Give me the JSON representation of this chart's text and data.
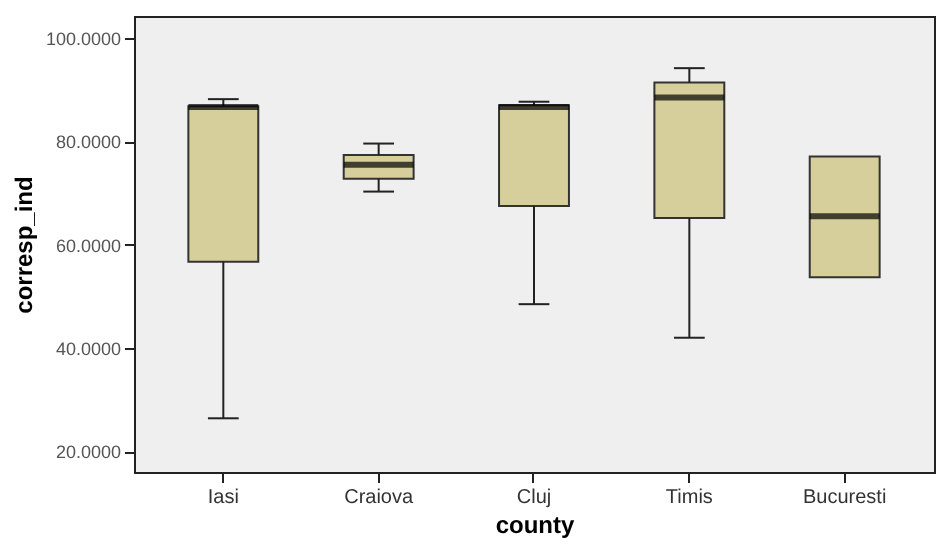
{
  "chart_data": {
    "type": "box",
    "xlabel": "county",
    "ylabel": "corresp_ind",
    "categories": [
      "Iasi",
      "Craiova",
      "Cluj",
      "Timis",
      "Bucuresti"
    ],
    "color": "#d6cf9c",
    "boxes": [
      {
        "low": 26.4,
        "q1": 56.7,
        "median": 86.7,
        "q3": 86.8,
        "high": 88.2
      },
      {
        "low": 70.3,
        "q1": 72.8,
        "median": 75.5,
        "q3": 77.4,
        "high": 79.6
      },
      {
        "low": 48.5,
        "q1": 67.5,
        "median": 86.7,
        "q3": 87.0,
        "high": 87.7
      },
      {
        "low": 42.0,
        "q1": 65.2,
        "median": 88.5,
        "q3": 91.4,
        "high": 94.2
      },
      {
        "low": 53.7,
        "q1": 53.7,
        "median": 65.5,
        "q3": 77.1,
        "high": 77.1
      }
    ],
    "ylim": [
      16,
      104.3
    ],
    "yticks": [
      {
        "value": 20,
        "label": "20.0000"
      },
      {
        "value": 40,
        "label": "40.0000"
      },
      {
        "value": 60,
        "label": "60.0000"
      },
      {
        "value": 80,
        "label": "80.0000"
      },
      {
        "value": 100,
        "label": "100.0000"
      }
    ],
    "grid": false
  }
}
